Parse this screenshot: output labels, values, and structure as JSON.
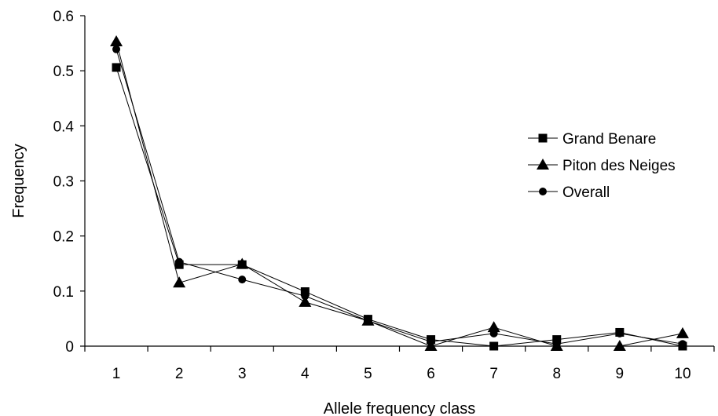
{
  "chart_data": {
    "type": "line",
    "xlabel": "Allele frequency class",
    "ylabel": "Frequency",
    "x": [
      1,
      2,
      3,
      4,
      5,
      6,
      7,
      8,
      9,
      10
    ],
    "xlim": [
      0.5,
      10.5
    ],
    "ylim": [
      0,
      0.6
    ],
    "yticks": [
      "0",
      "0.1",
      "0.2",
      "0.3",
      "0.4",
      "0.5",
      "0.6"
    ],
    "xticks": [
      "1",
      "2",
      "3",
      "4",
      "5",
      "6",
      "7",
      "8",
      "9",
      "10"
    ],
    "grid": false,
    "legend_position": "right",
    "series": [
      {
        "name": "Grand Benare",
        "marker": "square",
        "values": [
          0.506,
          0.148,
          0.148,
          0.099,
          0.049,
          0.012,
          0.0,
          0.012,
          0.025,
          0.0
        ]
      },
      {
        "name": "Piton des Neiges",
        "marker": "triangle",
        "values": [
          0.553,
          0.115,
          0.149,
          0.08,
          0.046,
          0.0,
          0.034,
          0.0,
          0.0,
          0.023
        ]
      },
      {
        "name": "Overall",
        "marker": "circle",
        "values": [
          0.539,
          0.153,
          0.121,
          0.091,
          0.046,
          0.008,
          0.023,
          0.004,
          0.023,
          0.004
        ]
      }
    ],
    "colors": {
      "line": "#000000",
      "marker": "#000000",
      "axis": "#000000"
    }
  }
}
